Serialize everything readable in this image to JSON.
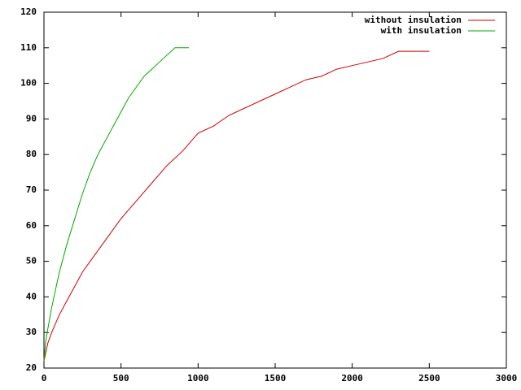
{
  "chart_data": {
    "type": "line",
    "xlim": [
      0,
      3000
    ],
    "xticks": [
      0,
      500,
      1000,
      1500,
      2000,
      2500,
      3000
    ],
    "ylim": [
      20,
      120
    ],
    "yticks": [
      20,
      30,
      40,
      50,
      60,
      70,
      80,
      90,
      100,
      110,
      120
    ],
    "grid": false,
    "legend": "top-right",
    "series": [
      {
        "name": "without insulation",
        "color": "#cc0000",
        "x": [
          0,
          25,
          50,
          100,
          150,
          200,
          250,
          300,
          400,
          500,
          600,
          700,
          800,
          900,
          1000,
          1100,
          1200,
          1300,
          1400,
          1500,
          1600,
          1700,
          1800,
          1900,
          2000,
          2100,
          2200,
          2300,
          2400,
          2500
        ],
        "values": [
          22,
          27,
          30,
          35,
          39,
          43,
          47,
          50,
          56,
          62,
          67,
          72,
          77,
          81,
          86,
          88,
          91,
          93,
          95,
          97,
          99,
          101,
          102,
          104,
          105,
          106,
          107,
          109,
          109,
          109
        ]
      },
      {
        "name": "with insulation",
        "color": "#00aa00",
        "x": [
          0,
          10,
          25,
          50,
          100,
          150,
          200,
          250,
          300,
          350,
          400,
          450,
          500,
          550,
          600,
          650,
          700,
          750,
          800,
          850,
          900,
          940
        ],
        "values": [
          22,
          27,
          31,
          37,
          47,
          55,
          62,
          69,
          75,
          80,
          84,
          88,
          92,
          96,
          99,
          102,
          104,
          106,
          108,
          110,
          110,
          110
        ]
      }
    ]
  }
}
